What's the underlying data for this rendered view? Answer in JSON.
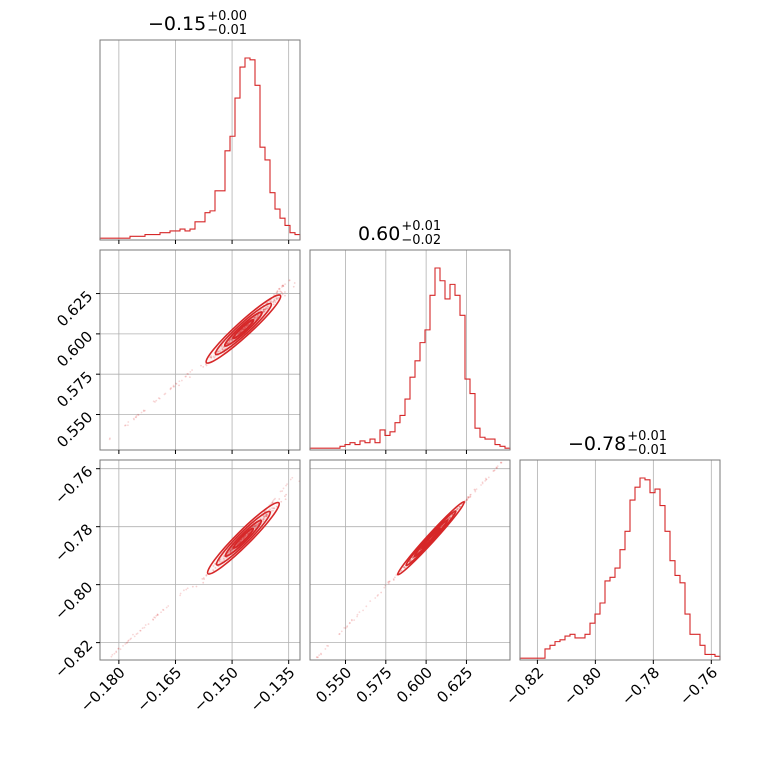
{
  "chart_data": {
    "type": "corner",
    "color": "#d62728",
    "grid": true,
    "parameters": [
      {
        "range": [
          -0.185,
          -0.132
        ],
        "ticks": [
          -0.18,
          -0.165,
          -0.15,
          -0.135
        ],
        "tick_labels": [
          "−0.180",
          "−0.165",
          "−0.150",
          "−0.135"
        ]
      },
      {
        "range": [
          0.528,
          0.652
        ],
        "ticks": [
          0.55,
          0.575,
          0.6,
          0.625
        ],
        "tick_labels": [
          "0.550",
          "0.575",
          "0.600",
          "0.625"
        ]
      },
      {
        "range": [
          -0.826,
          -0.757
        ],
        "ticks": [
          -0.82,
          -0.8,
          -0.78,
          -0.76
        ],
        "tick_labels": [
          "−0.82",
          "−0.80",
          "−0.78",
          "−0.76"
        ]
      }
    ],
    "titles": [
      {
        "value": "−0.15",
        "plus": "+0.00",
        "minus": "−0.01"
      },
      {
        "value": "0.60",
        "plus": "+0.01",
        "minus": "−0.02"
      },
      {
        "value": "−0.78",
        "plus": "+0.01",
        "minus": "−0.01"
      }
    ],
    "histograms": [
      {
        "bin_start": -0.185,
        "bin_width": 0.001325,
        "counts": [
          1,
          1,
          1,
          1,
          1,
          1,
          2,
          2,
          2,
          3,
          3,
          3,
          4,
          4,
          5,
          5,
          6,
          5,
          6,
          10,
          10,
          15,
          16,
          27,
          27,
          49,
          57,
          78,
          95,
          100,
          99,
          85,
          51,
          44,
          26,
          17,
          12,
          8,
          4,
          3
        ]
      },
      {
        "bin_start": 0.528,
        "bin_width": 0.0031,
        "counts": [
          1,
          1,
          1,
          1,
          1,
          1,
          2,
          3,
          4,
          3,
          5,
          4,
          6,
          4,
          11,
          8,
          10,
          15,
          19,
          28,
          40,
          49,
          59,
          66,
          85,
          100,
          93,
          83,
          91,
          85,
          74,
          39,
          31,
          12,
          7,
          6,
          6,
          3,
          2,
          1
        ]
      },
      {
        "bin_start": -0.826,
        "bin_width": 0.001725,
        "counts": [
          1,
          1,
          1,
          1,
          1,
          6,
          8,
          10,
          11,
          13,
          14,
          12,
          12,
          14,
          20,
          25,
          31,
          43,
          45,
          50,
          60,
          70,
          87,
          94,
          99,
          98,
          91,
          93,
          84,
          70,
          54,
          46,
          42,
          25,
          14,
          14,
          8,
          3,
          3,
          2
        ]
      }
    ],
    "correlations": [
      {
        "x": 0,
        "y": 1,
        "center": [
          -0.147,
          0.603
        ],
        "slope": 2.13,
        "sx": 0.0049,
        "rho": 0.995,
        "tail_low": [
          -0.183,
          0.534
        ],
        "tail_high": [
          -0.134,
          0.636
        ]
      },
      {
        "x": 0,
        "y": 2,
        "center": [
          -0.147,
          -0.784
        ],
        "slope": 1.3,
        "sx": 0.0047,
        "rho": 0.995,
        "tail_low": [
          -0.183,
          -0.826
        ],
        "tail_high": [
          -0.134,
          -0.763
        ]
      },
      {
        "x": 1,
        "y": 2,
        "center": [
          0.603,
          -0.784
        ],
        "slope": 0.61,
        "sx": 0.0103,
        "rho": 0.999,
        "tail_low": [
          0.531,
          -0.826
        ],
        "tail_high": [
          0.648,
          -0.757
        ]
      }
    ]
  }
}
